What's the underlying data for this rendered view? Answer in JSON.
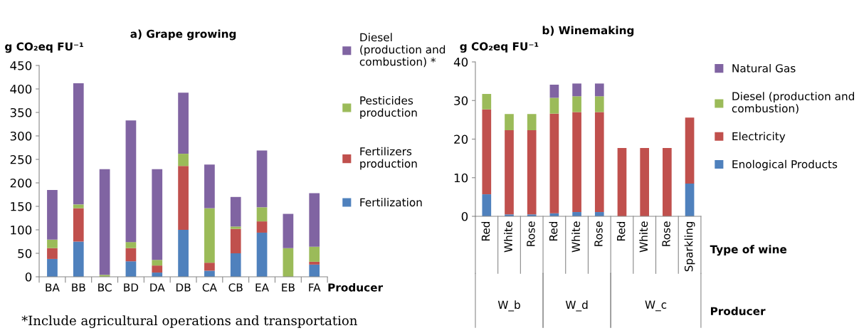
{
  "chart_data": [
    {
      "type": "bar",
      "title": "a) Grape growing",
      "xlabel": "Producer",
      "ylabel": "g CO₂eq FU⁻¹",
      "stacked": true,
      "legend": "right",
      "categories": [
        "BA",
        "BB",
        "BC",
        "BD",
        "DA",
        "DB",
        "CA",
        "CB",
        "EA",
        "EB",
        "FA"
      ],
      "ylim": [
        0,
        450
      ],
      "yticks": [
        0,
        50,
        100,
        150,
        200,
        250,
        300,
        350,
        400,
        450
      ],
      "grid": false,
      "series": [
        {
          "name": "Fertilization",
          "color": "#4f81bd",
          "values": [
            38,
            75,
            null,
            33,
            9,
            100,
            13,
            50,
            94,
            null,
            26
          ]
        },
        {
          "name": "Fertilizers production",
          "color": "#c0504d",
          "values": [
            23,
            71,
            null,
            28,
            15,
            136,
            17,
            52,
            24,
            null,
            6
          ]
        },
        {
          "name": "Pesticides production",
          "color": "#9bbb59",
          "values": [
            18,
            8,
            4,
            13,
            12,
            26,
            116,
            5,
            30,
            61,
            32
          ]
        },
        {
          "name": "Diesel (production and combustion) *",
          "color": "#8064a2",
          "values": [
            106,
            258,
            225,
            259,
            193,
            130,
            93,
            63,
            121,
            73,
            114
          ]
        }
      ],
      "annotations": [
        "*Include agricultural operations and transportation"
      ]
    },
    {
      "type": "bar",
      "title": "b) Winemaking",
      "xlabel": "Type of wine",
      "ylabel": "g CO₂eq FU⁻¹",
      "stacked": true,
      "legend": "right",
      "categories": [
        "Red",
        "White",
        "Rose",
        "Red",
        "White",
        "Rose",
        "Red",
        "White",
        "Rose",
        "Sparkling"
      ],
      "ylim": [
        0,
        40
      ],
      "yticks": [
        0,
        10,
        20,
        30,
        40
      ],
      "grid": false,
      "series": [
        {
          "name": "Enological Products",
          "color": "#4f81bd",
          "values": [
            5.7,
            0.5,
            0.5,
            0.8,
            1.1,
            1.1,
            null,
            null,
            null,
            8.5
          ]
        },
        {
          "name": "Electricity",
          "color": "#c0504d",
          "values": [
            22,
            21.8,
            21.8,
            25.8,
            25.9,
            25.9,
            17.7,
            17.7,
            17.7,
            17.1
          ]
        },
        {
          "name": "Diesel (production and combustion)",
          "color": "#9bbb59",
          "values": [
            4,
            4.2,
            4.2,
            4.1,
            4.1,
            4.1,
            null,
            null,
            null,
            null
          ]
        },
        {
          "name": "Natural Gas",
          "color": "#8064a2",
          "values": [
            null,
            null,
            null,
            3.4,
            3.3,
            3.3,
            null,
            null,
            null,
            null
          ]
        }
      ],
      "annotations": [
        "W_b",
        "W_d",
        "W_c",
        "Producer"
      ]
    }
  ]
}
